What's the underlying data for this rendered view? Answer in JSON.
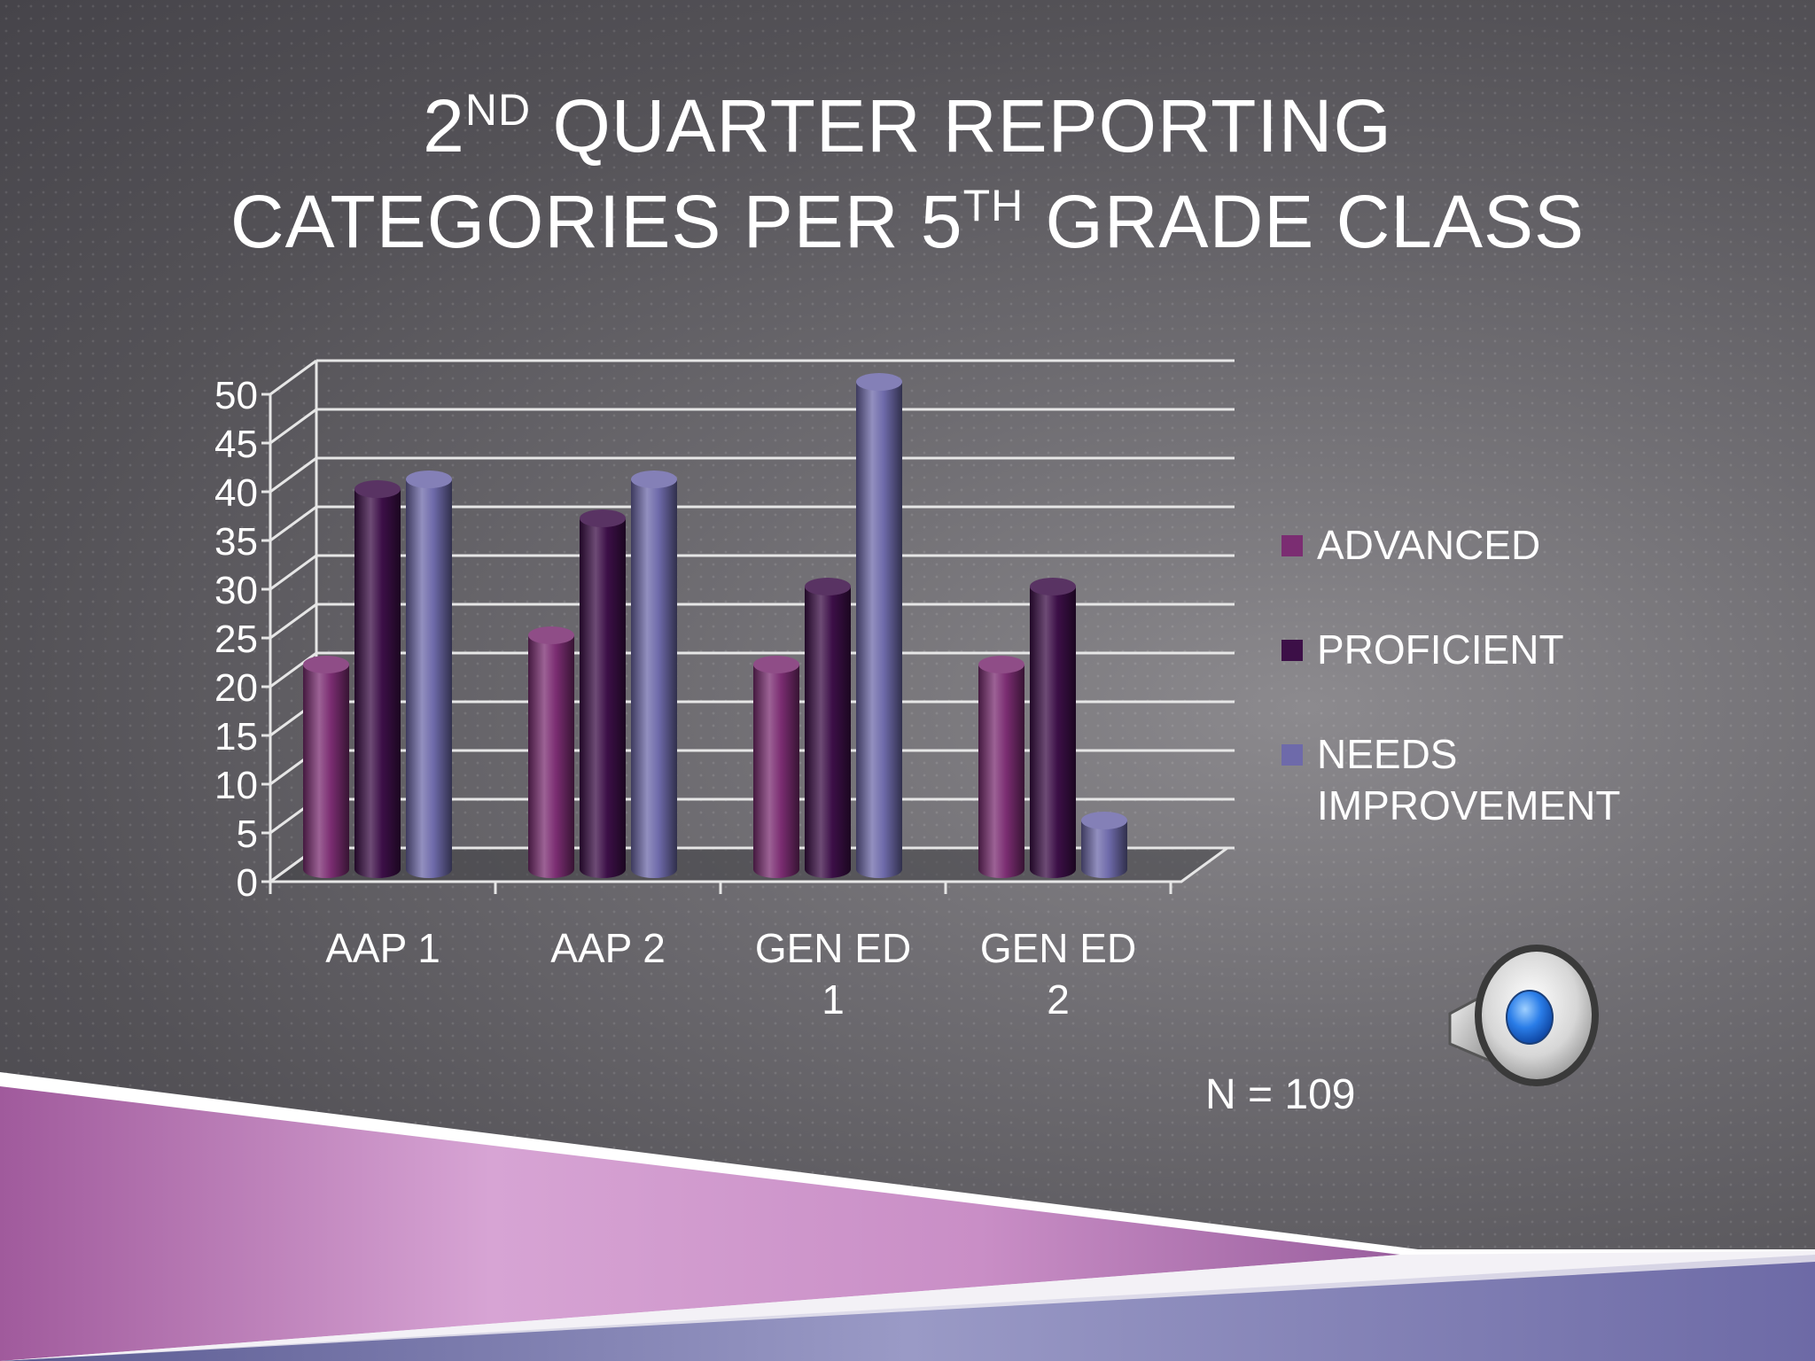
{
  "slide": {
    "title_parts": [
      {
        "text": "2",
        "sup": false
      },
      {
        "text": "ND",
        "sup": true
      },
      {
        "text": " QUARTER REPORTING",
        "sup": false
      },
      {
        "text": "\n",
        "sup": false
      },
      {
        "text": "CATEGORIES PER 5",
        "sup": false
      },
      {
        "text": "TH",
        "sup": true
      },
      {
        "text": " GRADE CLASS",
        "sup": false
      }
    ],
    "n_label": "N = 109",
    "speaker_icon": "speaker-icon"
  },
  "chart_data": {
    "type": "bar",
    "style": "3d-cylinder",
    "categories": [
      [
        "AAP 1"
      ],
      [
        "AAP 2"
      ],
      [
        "GEN ED",
        "1"
      ],
      [
        "GEN ED",
        "2"
      ]
    ],
    "series": [
      {
        "name": "ADVANCED",
        "color": "#7b2d72",
        "values": [
          21,
          24,
          21,
          21
        ]
      },
      {
        "name": "PROFICIENT",
        "color": "#3c0f47",
        "values": [
          39,
          36,
          29,
          29
        ]
      },
      {
        "name": "NEEDS IMPROVEMENT",
        "color": "#6e6aaa",
        "values": [
          40,
          40,
          50,
          5
        ]
      }
    ],
    "ylim": [
      0,
      50
    ],
    "yticks": [
      0,
      5,
      10,
      15,
      20,
      25,
      30,
      35,
      40,
      45,
      50
    ],
    "grid": true,
    "legend_position": "right"
  }
}
